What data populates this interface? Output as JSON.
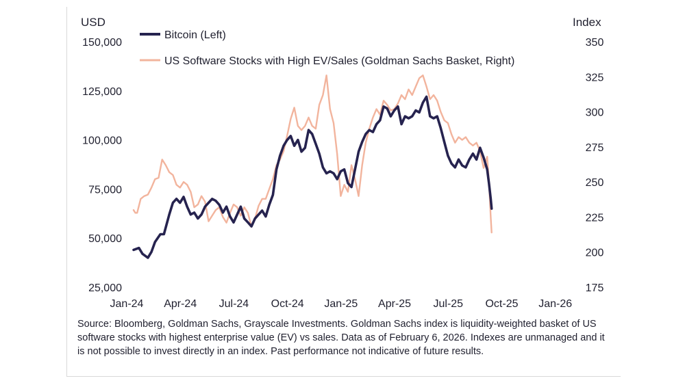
{
  "chart_data": {
    "type": "line",
    "left_axis_unit": "USD",
    "right_axis_unit": "Index",
    "left_ticks": [
      "150,000",
      "125,000",
      "100,000",
      "75,000",
      "50,000",
      "25,000"
    ],
    "left_range": [
      25000,
      150000
    ],
    "right_ticks": [
      "350",
      "325",
      "300",
      "275",
      "250",
      "225",
      "200",
      "175"
    ],
    "right_range": [
      175,
      350
    ],
    "x_ticks": [
      "Jan-24",
      "Apr-24",
      "Jul-24",
      "Oct-24",
      "Jan-25",
      "Apr-25",
      "Jul-25",
      "Oct-25",
      "Jan-26"
    ],
    "x_range": [
      0,
      25.2
    ],
    "legend": [
      "Bitcoin (Left)",
      "US Software Stocks with High EV/Sales (Goldman Sachs Basket, Right)"
    ],
    "series": [
      {
        "name": "Bitcoin (Left)",
        "axis": "left",
        "color": "#26234f",
        "points": [
          [
            0,
            44000
          ],
          [
            0.3,
            45000
          ],
          [
            0.5,
            42000
          ],
          [
            0.8,
            40000
          ],
          [
            1.0,
            43000
          ],
          [
            1.2,
            48000
          ],
          [
            1.5,
            52000
          ],
          [
            1.7,
            52000
          ],
          [
            2.0,
            62000
          ],
          [
            2.2,
            68000
          ],
          [
            2.4,
            70000
          ],
          [
            2.6,
            68000
          ],
          [
            2.8,
            71000
          ],
          [
            3.0,
            66000
          ],
          [
            3.2,
            62000
          ],
          [
            3.4,
            63000
          ],
          [
            3.6,
            60000
          ],
          [
            3.8,
            62000
          ],
          [
            4.0,
            66000
          ],
          [
            4.2,
            68000
          ],
          [
            4.4,
            70000
          ],
          [
            4.6,
            69000
          ],
          [
            4.8,
            67000
          ],
          [
            5.0,
            63000
          ],
          [
            5.2,
            66000
          ],
          [
            5.4,
            61000
          ],
          [
            5.6,
            58000
          ],
          [
            5.8,
            62000
          ],
          [
            6.0,
            66000
          ],
          [
            6.2,
            60000
          ],
          [
            6.4,
            58000
          ],
          [
            6.6,
            56000
          ],
          [
            6.8,
            60000
          ],
          [
            7.0,
            62000
          ],
          [
            7.2,
            64000
          ],
          [
            7.4,
            61000
          ],
          [
            7.6,
            67000
          ],
          [
            7.8,
            72000
          ],
          [
            8.0,
            85000
          ],
          [
            8.2,
            92000
          ],
          [
            8.4,
            97000
          ],
          [
            8.6,
            100000
          ],
          [
            8.8,
            102000
          ],
          [
            9.0,
            97000
          ],
          [
            9.2,
            100000
          ],
          [
            9.4,
            94000
          ],
          [
            9.6,
            96000
          ],
          [
            9.8,
            105000
          ],
          [
            10.0,
            103000
          ],
          [
            10.2,
            98000
          ],
          [
            10.4,
            93000
          ],
          [
            10.6,
            86000
          ],
          [
            10.8,
            83000
          ],
          [
            11.0,
            84000
          ],
          [
            11.2,
            83000
          ],
          [
            11.4,
            80000
          ],
          [
            11.6,
            84000
          ],
          [
            11.8,
            85000
          ],
          [
            12.0,
            78000
          ],
          [
            12.2,
            76000
          ],
          [
            12.4,
            85000
          ],
          [
            12.6,
            94000
          ],
          [
            12.8,
            99000
          ],
          [
            13.0,
            103000
          ],
          [
            13.2,
            105000
          ],
          [
            13.4,
            104000
          ],
          [
            13.6,
            108000
          ],
          [
            13.8,
            110000
          ],
          [
            14.0,
            117000
          ],
          [
            14.2,
            116000
          ],
          [
            14.4,
            112000
          ],
          [
            14.6,
            115000
          ],
          [
            14.8,
            117000
          ],
          [
            15.0,
            108000
          ],
          [
            15.2,
            112000
          ],
          [
            15.4,
            111000
          ],
          [
            15.6,
            112000
          ],
          [
            15.8,
            115000
          ],
          [
            16.0,
            114000
          ],
          [
            16.2,
            119000
          ],
          [
            16.4,
            122000
          ],
          [
            16.6,
            112000
          ],
          [
            16.8,
            111000
          ],
          [
            17.0,
            112000
          ],
          [
            17.2,
            106000
          ],
          [
            17.4,
            99000
          ],
          [
            17.6,
            92000
          ],
          [
            17.8,
            88000
          ],
          [
            18.0,
            86000
          ],
          [
            18.2,
            90000
          ],
          [
            18.4,
            87000
          ],
          [
            18.6,
            86000
          ],
          [
            18.8,
            90000
          ],
          [
            19.0,
            93000
          ],
          [
            19.2,
            90000
          ],
          [
            19.4,
            96000
          ],
          [
            19.6,
            91000
          ],
          [
            19.8,
            85000
          ],
          [
            19.9,
            78000
          ],
          [
            20.0,
            70000
          ],
          [
            20.05,
            65000
          ]
        ]
      },
      {
        "name": "US Software Stocks with High EV/Sales (Goldman Sachs Basket, Right)",
        "axis": "right",
        "color": "#f2b49d",
        "points": [
          [
            0,
            230
          ],
          [
            0.1,
            228
          ],
          [
            0.2,
            228
          ],
          [
            0.4,
            238
          ],
          [
            0.6,
            240
          ],
          [
            0.8,
            241
          ],
          [
            1.0,
            246
          ],
          [
            1.2,
            252
          ],
          [
            1.4,
            253
          ],
          [
            1.6,
            266
          ],
          [
            1.8,
            262
          ],
          [
            2.0,
            257
          ],
          [
            2.2,
            255
          ],
          [
            2.4,
            248
          ],
          [
            2.6,
            246
          ],
          [
            2.8,
            250
          ],
          [
            3.0,
            248
          ],
          [
            3.2,
            243
          ],
          [
            3.4,
            232
          ],
          [
            3.6,
            234
          ],
          [
            3.8,
            240
          ],
          [
            4.0,
            236
          ],
          [
            4.2,
            222
          ],
          [
            4.4,
            226
          ],
          [
            4.6,
            230
          ],
          [
            4.8,
            232
          ],
          [
            5.0,
            225
          ],
          [
            5.2,
            221
          ],
          [
            5.4,
            228
          ],
          [
            5.6,
            234
          ],
          [
            5.8,
            232
          ],
          [
            6.0,
            226
          ],
          [
            6.2,
            232
          ],
          [
            6.4,
            228
          ],
          [
            6.6,
            218
          ],
          [
            6.8,
            224
          ],
          [
            7.0,
            233
          ],
          [
            7.2,
            238
          ],
          [
            7.4,
            238
          ],
          [
            7.6,
            245
          ],
          [
            7.8,
            252
          ],
          [
            8.0,
            262
          ],
          [
            8.2,
            266
          ],
          [
            8.4,
            272
          ],
          [
            8.6,
            283
          ],
          [
            8.8,
            295
          ],
          [
            9.0,
            303
          ],
          [
            9.2,
            290
          ],
          [
            9.4,
            287
          ],
          [
            9.6,
            290
          ],
          [
            9.8,
            296
          ],
          [
            10.0,
            290
          ],
          [
            10.2,
            288
          ],
          [
            10.4,
            305
          ],
          [
            10.6,
            312
          ],
          [
            10.8,
            326
          ],
          [
            11.0,
            302
          ],
          [
            11.2,
            292
          ],
          [
            11.4,
            270
          ],
          [
            11.6,
            240
          ],
          [
            11.8,
            248
          ],
          [
            12.0,
            243
          ],
          [
            12.2,
            262
          ],
          [
            12.4,
            252
          ],
          [
            12.6,
            240
          ],
          [
            12.8,
            262
          ],
          [
            13.0,
            278
          ],
          [
            13.2,
            288
          ],
          [
            13.4,
            296
          ],
          [
            13.6,
            302
          ],
          [
            13.8,
            298
          ],
          [
            14.0,
            308
          ],
          [
            14.2,
            305
          ],
          [
            14.4,
            301
          ],
          [
            14.6,
            302
          ],
          [
            14.8,
            306
          ],
          [
            15.0,
            312
          ],
          [
            15.2,
            309
          ],
          [
            15.4,
            316
          ],
          [
            15.6,
            312
          ],
          [
            15.8,
            318
          ],
          [
            16.0,
            324
          ],
          [
            16.2,
            326
          ],
          [
            16.4,
            318
          ],
          [
            16.6,
            309
          ],
          [
            16.8,
            312
          ],
          [
            17.0,
            308
          ],
          [
            17.2,
            300
          ],
          [
            17.4,
            294
          ],
          [
            17.6,
            292
          ],
          [
            17.8,
            284
          ],
          [
            18.0,
            278
          ],
          [
            18.2,
            282
          ],
          [
            18.4,
            280
          ],
          [
            18.6,
            282
          ],
          [
            18.8,
            278
          ],
          [
            19.0,
            276
          ],
          [
            19.2,
            278
          ],
          [
            19.4,
            272
          ],
          [
            19.6,
            260
          ],
          [
            19.8,
            268
          ],
          [
            19.9,
            250
          ],
          [
            20.0,
            225
          ],
          [
            20.05,
            214
          ]
        ]
      }
    ]
  },
  "source_note": "Source: Bloomberg, Goldman Sachs, Grayscale Investments. Goldman Sachs index is liquidity-weighted basket of US software stocks with highest enterprise value (EV) vs sales. Data as of February 6, 2026. Indexes are unmanaged and it is not possible to invest directly in an index. Past performance not indicative of future results."
}
